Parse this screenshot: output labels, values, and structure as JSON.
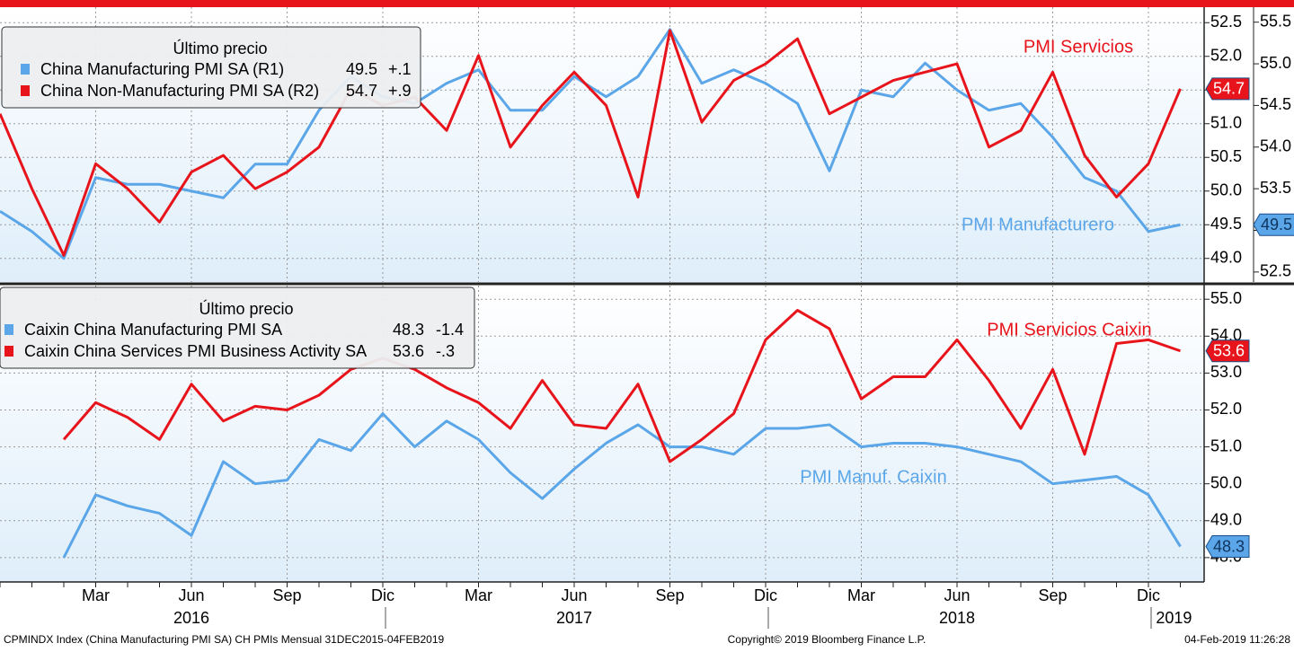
{
  "chart_data": [
    {
      "type": "line",
      "legend": {
        "title": "Último precio",
        "corner": "upper-left"
      },
      "annotations": [
        "PMI Servicios",
        "PMI Manufacturero"
      ],
      "ylim": [
        48.65,
        52.73
      ],
      "yticks": [
        {
          "value": 49,
          "label": "49.0"
        },
        49.5,
        {
          "value": 50,
          "label": "50.0"
        },
        50.5,
        {
          "value": 51,
          "label": "51.0"
        },
        51.5,
        {
          "value": 52,
          "label": "52.0"
        },
        52.5
      ],
      "y2lim": [
        52.38,
        55.68
      ],
      "y2ticks": [
        52.5,
        {
          "value": 53,
          "label": "53.0"
        },
        53.5,
        {
          "value": 54,
          "label": "54.0"
        },
        54.5,
        {
          "value": 55,
          "label": "55.0"
        },
        55.5
      ],
      "grid": true,
      "series": [
        {
          "name": "China Manufacturing PMI SA  (R1)",
          "color": "#5aa6e8",
          "axis": "y",
          "last": 49.5,
          "change": "+.1",
          "values": [
            49.7,
            49.4,
            49.0,
            50.2,
            50.1,
            50.1,
            50.0,
            49.9,
            50.4,
            50.4,
            51.2,
            51.7,
            51.4,
            51.3,
            51.6,
            51.8,
            51.2,
            51.2,
            51.7,
            51.4,
            51.7,
            52.4,
            51.6,
            51.8,
            51.6,
            51.3,
            50.3,
            51.5,
            51.4,
            51.9,
            51.5,
            51.2,
            51.3,
            50.8,
            50.2,
            50.0,
            49.4,
            49.5
          ]
        },
        {
          "name": "China Non-Manufacturing PMI SA  (R2)",
          "color": "#e8141b",
          "axis": "y2",
          "last": 54.7,
          "change": "+.9",
          "values": [
            54.4,
            53.5,
            52.7,
            53.8,
            53.5,
            53.1,
            53.7,
            53.9,
            53.5,
            53.7,
            54.0,
            54.7,
            54.5,
            54.6,
            54.2,
            55.1,
            54.0,
            54.5,
            54.9,
            54.5,
            53.4,
            55.4,
            54.3,
            54.8,
            55.0,
            55.3,
            54.4,
            54.6,
            54.8,
            54.9,
            55.0,
            54.0,
            54.2,
            54.9,
            53.9,
            53.4,
            53.8,
            54.7
          ]
        }
      ]
    },
    {
      "type": "line",
      "legend": {
        "title": "Último precio",
        "corner": "upper-left"
      },
      "annotations": [
        "PMI Servicios Caixin",
        "PMI Manuf. Caixin"
      ],
      "categories": [
        null,
        null,
        null,
        "Mar",
        null,
        null,
        "Jun",
        null,
        null,
        "Sep",
        null,
        null,
        "Dic",
        null,
        null,
        "Mar",
        null,
        null,
        "Jun",
        null,
        null,
        "Sep",
        null,
        null,
        "Dic",
        null,
        null,
        "Mar",
        null,
        null,
        "Jun",
        null,
        null,
        "Sep",
        null,
        null,
        "Dic",
        null
      ],
      "years": [
        "2016",
        "2017",
        "2018",
        "2019"
      ],
      "ylim": [
        47.34,
        55.37
      ],
      "yticks": [
        {
          "value": 48,
          "label": "48.0"
        },
        {
          "value": 49,
          "label": "49.0"
        },
        {
          "value": 50,
          "label": "50.0"
        },
        {
          "value": 51,
          "label": "51.0"
        },
        {
          "value": 52,
          "label": "52.0"
        },
        {
          "value": 53,
          "label": "53.0"
        },
        {
          "value": 54,
          "label": "54.0"
        },
        {
          "value": 55,
          "label": "55.0"
        }
      ],
      "grid": true,
      "series": [
        {
          "name": "Caixin China Manufacturing PMI SA",
          "color": "#5aa6e8",
          "axis": "y",
          "last": 48.3,
          "change": "-1.4",
          "values": [
            null,
            null,
            48.0,
            49.7,
            49.4,
            49.2,
            48.6,
            50.6,
            50.0,
            50.1,
            51.2,
            50.9,
            51.9,
            51.0,
            51.7,
            51.2,
            50.3,
            49.6,
            50.4,
            51.1,
            51.6,
            51.0,
            51.0,
            50.8,
            51.5,
            51.5,
            51.6,
            51.0,
            51.1,
            51.1,
            51.0,
            50.8,
            50.6,
            50.0,
            50.1,
            50.2,
            49.7,
            48.3
          ]
        },
        {
          "name": "Caixin China Services PMI Business Activity SA",
          "color": "#e8141b",
          "axis": "y",
          "last": 53.6,
          "change": "-.3",
          "values": [
            null,
            null,
            51.2,
            52.2,
            51.8,
            51.2,
            52.7,
            51.7,
            52.1,
            52.0,
            52.4,
            53.1,
            53.4,
            53.1,
            52.6,
            52.2,
            51.5,
            52.8,
            51.6,
            51.5,
            52.7,
            50.6,
            51.2,
            51.9,
            53.9,
            54.7,
            54.2,
            52.3,
            52.9,
            52.9,
            53.9,
            52.8,
            51.5,
            53.1,
            50.8,
            53.8,
            53.9,
            53.6
          ]
        }
      ]
    }
  ],
  "footer": {
    "left": "CPMINDX Index (China Manufacturing PMI SA) CH PMIs  Mensual 31DEC2015-04FEB2019",
    "center": "Copyright© 2019 Bloomberg Finance L.P.",
    "right": "04-Feb-2019 11:26:28"
  }
}
